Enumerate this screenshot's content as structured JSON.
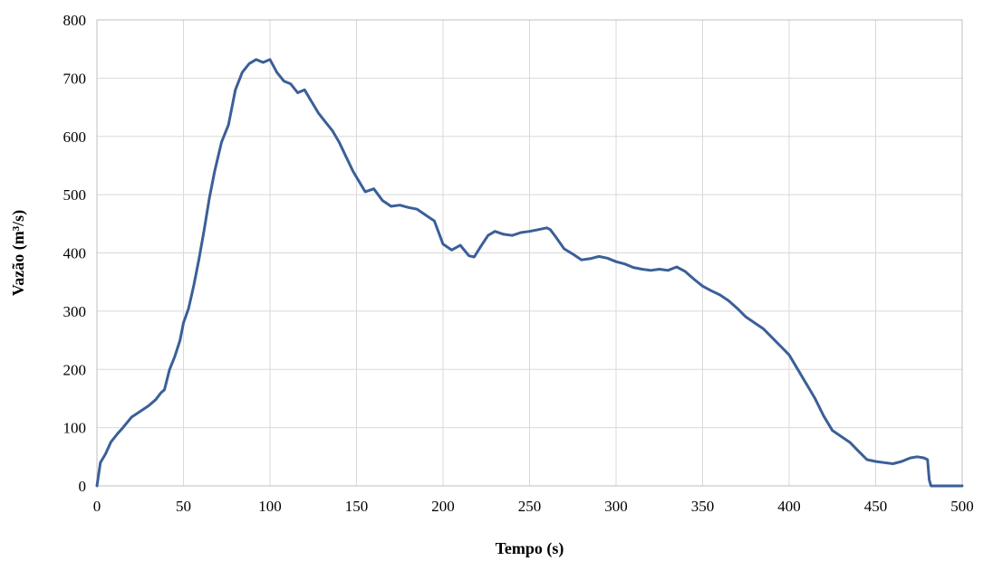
{
  "chart_data": {
    "type": "line",
    "xlabel": "Tempo (s)",
    "ylabel": "Vazão (m³/s)",
    "xlim": [
      0,
      500
    ],
    "ylim": [
      0,
      800
    ],
    "xticks": [
      0,
      50,
      100,
      150,
      200,
      250,
      300,
      350,
      400,
      450,
      500
    ],
    "yticks": [
      0,
      100,
      200,
      300,
      400,
      500,
      600,
      700,
      800
    ],
    "grid": true,
    "series_color": "#3b5f98",
    "series": [
      {
        "x": [
          0,
          2,
          5,
          8,
          12,
          15,
          20,
          25,
          30,
          34,
          37,
          39,
          42,
          45,
          48,
          50,
          53,
          56,
          59,
          62,
          65,
          68,
          72,
          76,
          80,
          84,
          88,
          92,
          96,
          100,
          104,
          108,
          112,
          116,
          120,
          124,
          128,
          132,
          136,
          140,
          144,
          148,
          150,
          155,
          160,
          165,
          170,
          175,
          180,
          185,
          190,
          195,
          200,
          205,
          210,
          215,
          218,
          222,
          226,
          230,
          235,
          240,
          245,
          250,
          255,
          260,
          262,
          265,
          270,
          275,
          280,
          285,
          290,
          295,
          300,
          305,
          310,
          315,
          320,
          325,
          330,
          335,
          340,
          345,
          350,
          355,
          360,
          365,
          370,
          375,
          380,
          385,
          390,
          395,
          400,
          405,
          410,
          415,
          420,
          425,
          430,
          435,
          440,
          445,
          450,
          455,
          460,
          465,
          470,
          474,
          478,
          480,
          481,
          482,
          485,
          490,
          500
        ],
        "y": [
          0,
          40,
          55,
          75,
          90,
          100,
          118,
          128,
          138,
          148,
          160,
          165,
          200,
          222,
          250,
          280,
          305,
          345,
          390,
          440,
          495,
          540,
          590,
          620,
          680,
          710,
          725,
          732,
          727,
          732,
          710,
          695,
          690,
          675,
          680,
          660,
          640,
          625,
          610,
          590,
          565,
          540,
          530,
          505,
          510,
          490,
          480,
          482,
          478,
          475,
          465,
          455,
          415,
          405,
          413,
          395,
          393,
          412,
          430,
          437,
          432,
          430,
          435,
          437,
          440,
          443,
          440,
          428,
          407,
          398,
          388,
          390,
          394,
          391,
          385,
          381,
          375,
          372,
          370,
          372,
          370,
          376,
          368,
          355,
          343,
          335,
          328,
          318,
          305,
          290,
          280,
          270,
          255,
          240,
          225,
          200,
          175,
          150,
          120,
          95,
          85,
          75,
          60,
          45,
          42,
          40,
          38,
          42,
          48,
          50,
          48,
          45,
          10,
          0,
          0,
          0,
          0
        ]
      }
    ]
  }
}
